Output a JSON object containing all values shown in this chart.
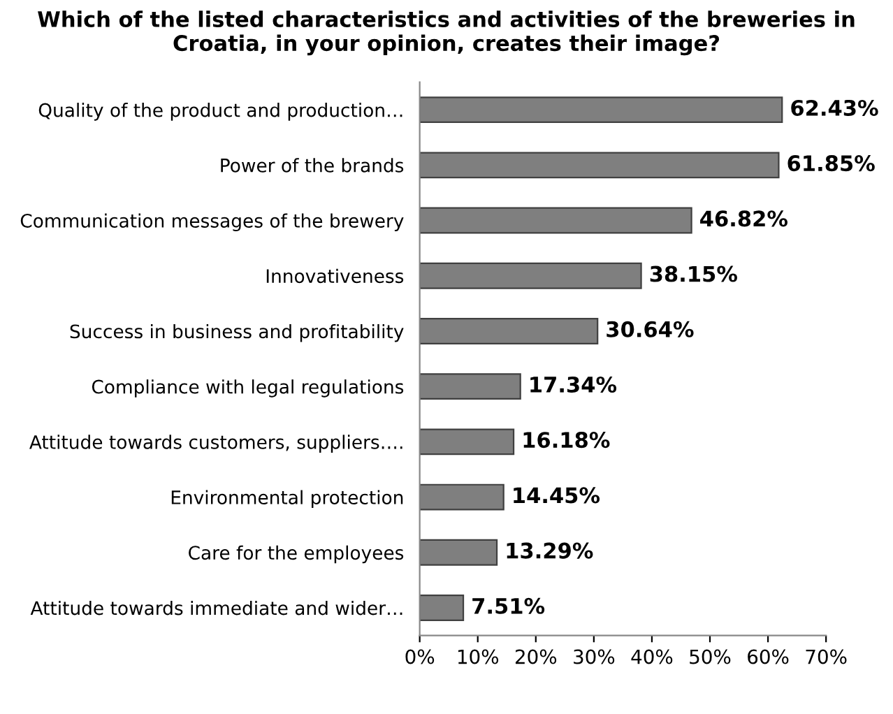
{
  "chart_data": {
    "type": "bar",
    "orientation": "horizontal",
    "title": "Which of the listed characteristics and activities of the breweries in Croatia, in your opinion, creates their image?",
    "categories": [
      "Quality of the product and production…",
      "Power of the brands",
      "Communication messages of the brewery",
      "Innovativeness",
      "Success in business and profitability",
      "Compliance with legal regulations",
      "Attitude towards customers, suppliers….",
      "Environmental protection",
      "Care for the employees",
      "Attitude towards immediate and wider…"
    ],
    "values": [
      62.43,
      61.85,
      46.82,
      38.15,
      30.64,
      17.34,
      16.18,
      14.45,
      13.29,
      7.51
    ],
    "value_labels": [
      "62.43%",
      "61.85%",
      "46.82%",
      "38.15%",
      "30.64%",
      "17.34%",
      "16.18%",
      "14.45%",
      "13.29%",
      "7.51%"
    ],
    "color": "#7f7f7f",
    "xlim": [
      0,
      70
    ],
    "xticks": [
      {
        "value": 0,
        "label": "0%"
      },
      {
        "value": 10,
        "label": "10%"
      },
      {
        "value": 20,
        "label": "20%"
      },
      {
        "value": 30,
        "label": "30%"
      },
      {
        "value": 40,
        "label": "40%"
      },
      {
        "value": 50,
        "label": "50%"
      },
      {
        "value": 60,
        "label": "60%"
      },
      {
        "value": 70,
        "label": "70%"
      }
    ],
    "grid": false,
    "legend": false
  }
}
